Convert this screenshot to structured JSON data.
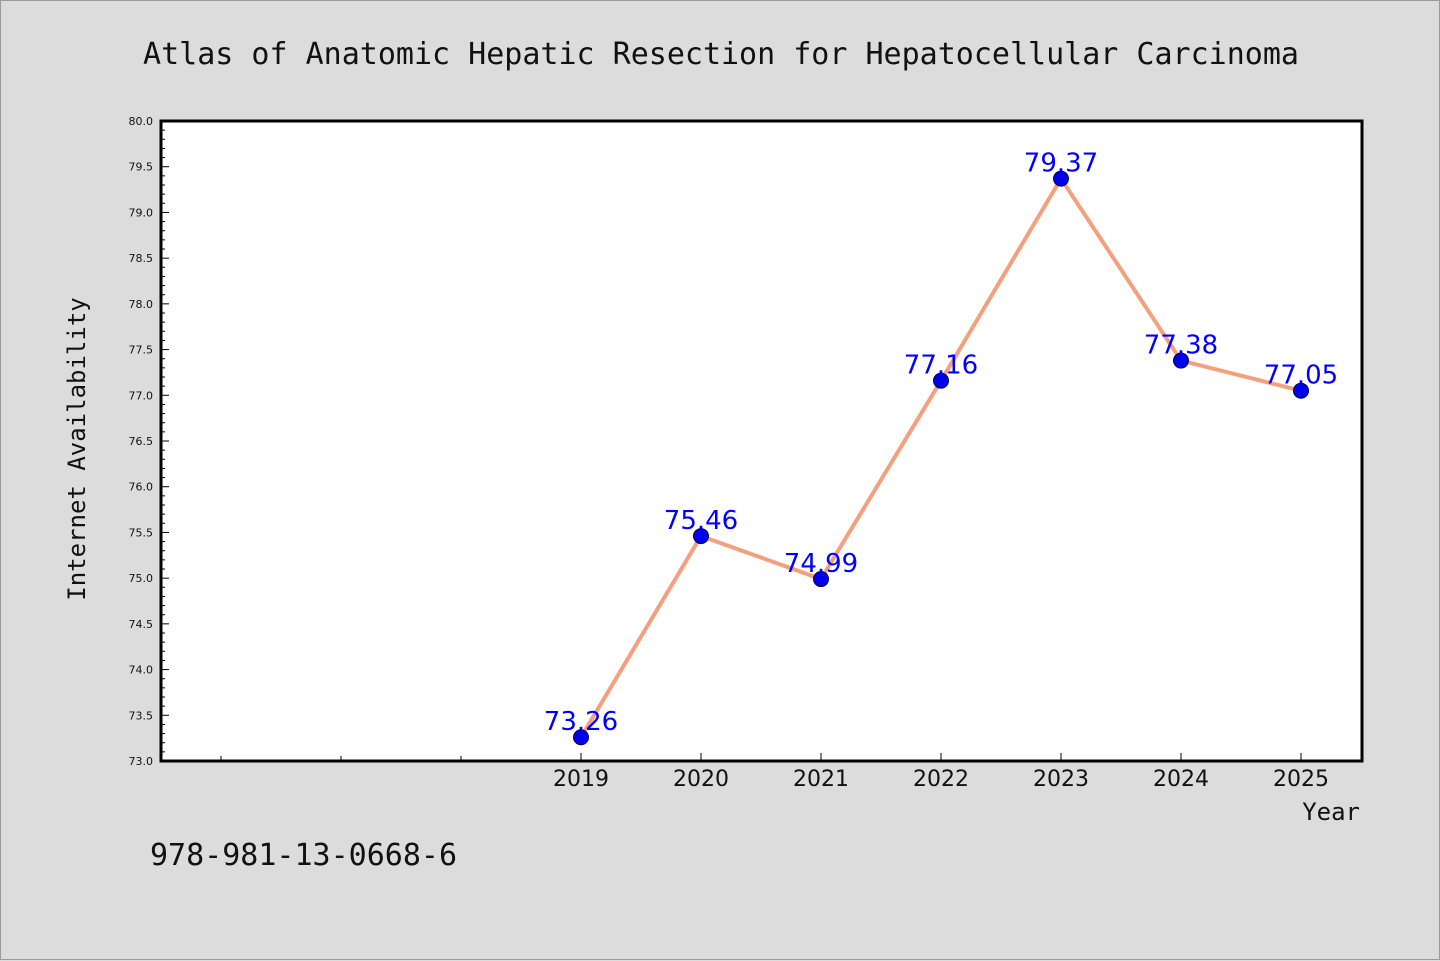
{
  "chart_data": {
    "type": "line",
    "title": "Atlas of Anatomic Hepatic Resection for Hepatocellular Carcinoma",
    "xlabel": "Year",
    "ylabel": "Internet Availability",
    "categories": [
      "2019",
      "2020",
      "2021",
      "2022",
      "2023",
      "2024",
      "2025"
    ],
    "series": [
      {
        "values": [
          73.26,
          75.46,
          74.99,
          77.16,
          79.37,
          77.38,
          77.05
        ],
        "labels": [
          "73.26",
          "75.46",
          "74.99",
          "77.16",
          "79.37",
          "77.38",
          "77.05"
        ]
      }
    ],
    "ylim": [
      73.0,
      80.0
    ],
    "yticks": [
      "73.0",
      "73.5",
      "74.0",
      "74.5",
      "75.0",
      "75.5",
      "76.0",
      "76.5",
      "77.0",
      "77.5",
      "78.0",
      "78.5",
      "79.0",
      "79.5",
      "80.0"
    ],
    "grid": false,
    "legend": "none",
    "colors": {
      "line": "#f4a07e",
      "marker": "#0000ee",
      "label": "#0000ff",
      "background": "#dcdcdc",
      "plot_background": "#ffffff"
    }
  },
  "footer": {
    "isbn": "978-981-13-0668-6"
  }
}
